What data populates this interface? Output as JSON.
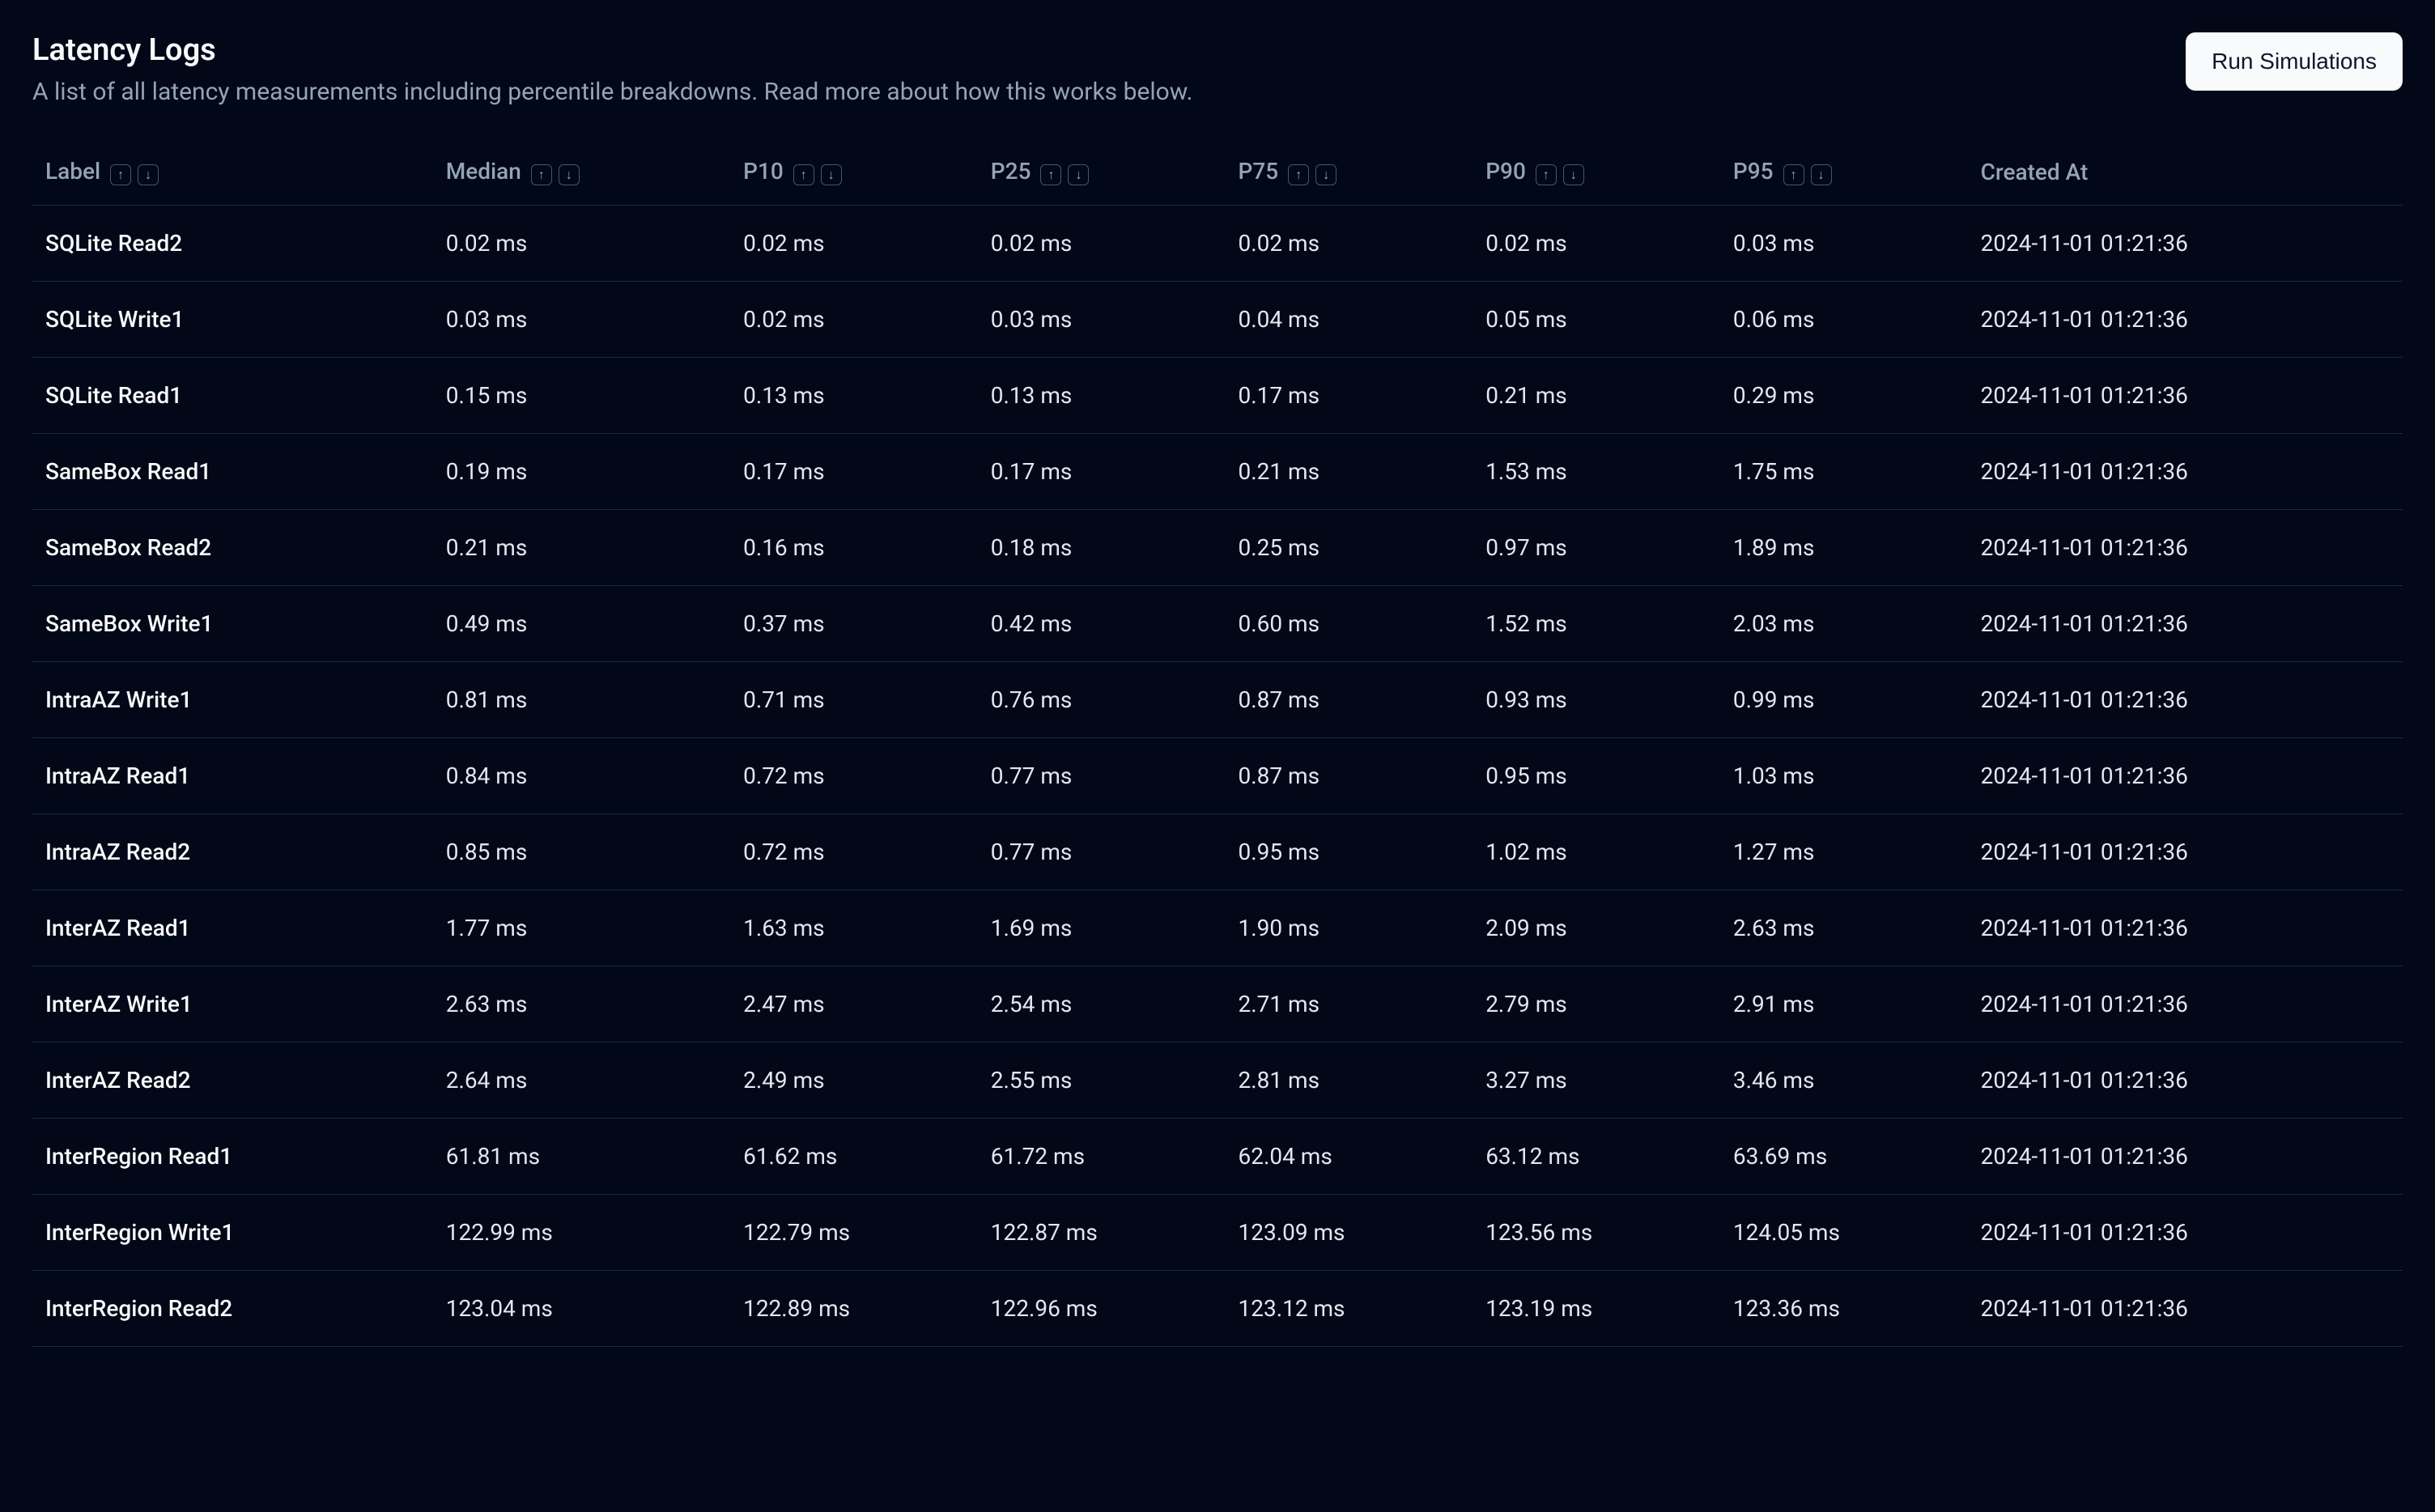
{
  "header": {
    "title": "Latency Logs",
    "subtitle": "A list of all latency measurements including percentile breakdowns. Read more about how this works below.",
    "run_button_label": "Run Simulations"
  },
  "table": {
    "columns": [
      {
        "label": "Label",
        "sortable": true
      },
      {
        "label": "Median",
        "sortable": true
      },
      {
        "label": "P10",
        "sortable": true
      },
      {
        "label": "P25",
        "sortable": true
      },
      {
        "label": "P75",
        "sortable": true
      },
      {
        "label": "P90",
        "sortable": true
      },
      {
        "label": "P95",
        "sortable": true
      },
      {
        "label": "Created At",
        "sortable": false
      }
    ],
    "rows": [
      {
        "label": "SQLite Read2",
        "median": "0.02 ms",
        "p10": "0.02 ms",
        "p25": "0.02 ms",
        "p75": "0.02 ms",
        "p90": "0.02 ms",
        "p95": "0.03 ms",
        "created_at": "2024-11-01 01:21:36"
      },
      {
        "label": "SQLite Write1",
        "median": "0.03 ms",
        "p10": "0.02 ms",
        "p25": "0.03 ms",
        "p75": "0.04 ms",
        "p90": "0.05 ms",
        "p95": "0.06 ms",
        "created_at": "2024-11-01 01:21:36"
      },
      {
        "label": "SQLite Read1",
        "median": "0.15 ms",
        "p10": "0.13 ms",
        "p25": "0.13 ms",
        "p75": "0.17 ms",
        "p90": "0.21 ms",
        "p95": "0.29 ms",
        "created_at": "2024-11-01 01:21:36"
      },
      {
        "label": "SameBox Read1",
        "median": "0.19 ms",
        "p10": "0.17 ms",
        "p25": "0.17 ms",
        "p75": "0.21 ms",
        "p90": "1.53 ms",
        "p95": "1.75 ms",
        "created_at": "2024-11-01 01:21:36"
      },
      {
        "label": "SameBox Read2",
        "median": "0.21 ms",
        "p10": "0.16 ms",
        "p25": "0.18 ms",
        "p75": "0.25 ms",
        "p90": "0.97 ms",
        "p95": "1.89 ms",
        "created_at": "2024-11-01 01:21:36"
      },
      {
        "label": "SameBox Write1",
        "median": "0.49 ms",
        "p10": "0.37 ms",
        "p25": "0.42 ms",
        "p75": "0.60 ms",
        "p90": "1.52 ms",
        "p95": "2.03 ms",
        "created_at": "2024-11-01 01:21:36"
      },
      {
        "label": "IntraAZ Write1",
        "median": "0.81 ms",
        "p10": "0.71 ms",
        "p25": "0.76 ms",
        "p75": "0.87 ms",
        "p90": "0.93 ms",
        "p95": "0.99 ms",
        "created_at": "2024-11-01 01:21:36"
      },
      {
        "label": "IntraAZ Read1",
        "median": "0.84 ms",
        "p10": "0.72 ms",
        "p25": "0.77 ms",
        "p75": "0.87 ms",
        "p90": "0.95 ms",
        "p95": "1.03 ms",
        "created_at": "2024-11-01 01:21:36"
      },
      {
        "label": "IntraAZ Read2",
        "median": "0.85 ms",
        "p10": "0.72 ms",
        "p25": "0.77 ms",
        "p75": "0.95 ms",
        "p90": "1.02 ms",
        "p95": "1.27 ms",
        "created_at": "2024-11-01 01:21:36"
      },
      {
        "label": "InterAZ Read1",
        "median": "1.77 ms",
        "p10": "1.63 ms",
        "p25": "1.69 ms",
        "p75": "1.90 ms",
        "p90": "2.09 ms",
        "p95": "2.63 ms",
        "created_at": "2024-11-01 01:21:36"
      },
      {
        "label": "InterAZ Write1",
        "median": "2.63 ms",
        "p10": "2.47 ms",
        "p25": "2.54 ms",
        "p75": "2.71 ms",
        "p90": "2.79 ms",
        "p95": "2.91 ms",
        "created_at": "2024-11-01 01:21:36"
      },
      {
        "label": "InterAZ Read2",
        "median": "2.64 ms",
        "p10": "2.49 ms",
        "p25": "2.55 ms",
        "p75": "2.81 ms",
        "p90": "3.27 ms",
        "p95": "3.46 ms",
        "created_at": "2024-11-01 01:21:36"
      },
      {
        "label": "InterRegion Read1",
        "median": "61.81 ms",
        "p10": "61.62 ms",
        "p25": "61.72 ms",
        "p75": "62.04 ms",
        "p90": "63.12 ms",
        "p95": "63.69 ms",
        "created_at": "2024-11-01 01:21:36"
      },
      {
        "label": "InterRegion Write1",
        "median": "122.99 ms",
        "p10": "122.79 ms",
        "p25": "122.87 ms",
        "p75": "123.09 ms",
        "p90": "123.56 ms",
        "p95": "124.05 ms",
        "created_at": "2024-11-01 01:21:36"
      },
      {
        "label": "InterRegion Read2",
        "median": "123.04 ms",
        "p10": "122.89 ms",
        "p25": "122.96 ms",
        "p75": "123.12 ms",
        "p90": "123.19 ms",
        "p95": "123.36 ms",
        "created_at": "2024-11-01 01:21:36"
      }
    ]
  },
  "colors": {
    "background": "#020817",
    "text_primary": "#f8fafc",
    "text_secondary": "#94a3b8",
    "text_body": "#e2e8f0",
    "border": "#1e293b",
    "button_bg": "#f8fafc",
    "button_text": "#0f172a",
    "icon_border": "#475569"
  }
}
